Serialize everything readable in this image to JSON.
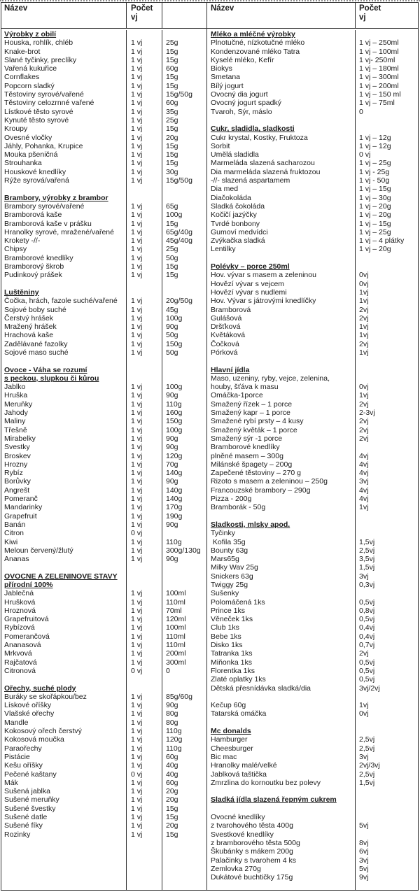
{
  "page": {
    "background": "#ffffff",
    "border_color": "#2e2e2e",
    "text_color": "#1b1b1b",
    "unit_abbreviation": "vj"
  },
  "left_table": {
    "headers": [
      "Název",
      "Počet\nvj",
      ""
    ],
    "sections": [
      {
        "title_lines": [
          "Výrobky z obilí"
        ],
        "rows": [
          [
            "Houska, rohlík, chléb",
            "1 vj",
            "25g"
          ],
          [
            "Knake-brot",
            "1 vj",
            "15g"
          ],
          [
            "Slané tyčinky, preclíky",
            "1 vj",
            "15g"
          ],
          [
            "Vařená kukuřice",
            "1 vj",
            "60g"
          ],
          [
            "Cornflakes",
            "1 vj",
            "15g"
          ],
          [
            "Popcorn sladký",
            "1 vj",
            "15g"
          ],
          [
            "Těstoviny syrové/vařené",
            "1 vj",
            "15g/50g"
          ],
          [
            "Těstoviny celozrnné vařené",
            "1 vj",
            "60g"
          ],
          [
            "Lístkové těsto syrové",
            "1 vj",
            "35g"
          ],
          [
            "Kynuté těsto syrové",
            "1 vj",
            "25g"
          ],
          [
            "Kroupy",
            "1 vj",
            "15g"
          ],
          [
            "Ovesné vločky",
            "1 vj",
            "20g"
          ],
          [
            "Jáhly, Pohanka, Krupice",
            "1 vj",
            "15g"
          ],
          [
            "Mouka pšeničná",
            "1 vj",
            "15g"
          ],
          [
            "Strouhanka",
            "1 vj",
            "15g"
          ],
          [
            "Houskové knedlíky",
            "1 vj",
            "30g"
          ],
          [
            "Rýže syrová/vařená",
            "1 vj",
            "15g/50g"
          ]
        ]
      },
      {
        "title_lines": [
          "Brambory, výrobky z brambor"
        ],
        "rows": [
          [
            "Brambory syrové/vařené",
            "1 vj",
            "65g"
          ],
          [
            "Bramborová kaše",
            "1 vj",
            "100g"
          ],
          [
            "Bramborová kaše v prášku",
            "1 vj",
            "15g"
          ],
          [
            "Hranolky syrové, mražené/vařené",
            "1 vj",
            "65g/40g"
          ],
          [
            "Krokety -//-",
            "1 vj",
            "45g/40g"
          ],
          [
            "Chipsy",
            "1 vj",
            "25g"
          ],
          [
            "Bramborové knedlíky",
            "1 vj",
            "50g"
          ],
          [
            "Bramborový škrob",
            "1 vj",
            "15g"
          ],
          [
            "Pudinkový prášek",
            "1 vj",
            "15g"
          ]
        ]
      },
      {
        "title_lines": [
          "Luštěniny"
        ],
        "rows": [
          [
            "Čočka, hrách, fazole suché/vařené",
            "1 vj",
            "20g/50g"
          ],
          [
            "Sojové boby suché",
            "1 vj",
            "45g"
          ],
          [
            "Čerstvý hrášek",
            "1 vj",
            "100g"
          ],
          [
            "Mražený hrášek",
            "1 vj",
            "90g"
          ],
          [
            "Hrachová kaše",
            "1 vj",
            "50g"
          ],
          [
            "Zadělávané fazolky",
            "1 vj",
            "150g"
          ],
          [
            "Sojové maso suché",
            "1 vj",
            "50g"
          ]
        ]
      },
      {
        "title_lines": [
          "Ovoce - Váha se rozumí",
          "s peckou, slupkou či kůrou"
        ],
        "rows": [
          [
            "Jablko",
            "1 vj",
            "100g"
          ],
          [
            "Hruška",
            "1 vj",
            "90g"
          ],
          [
            "Meruňky",
            "1 vj",
            "110g"
          ],
          [
            "Jahody",
            "1 vj",
            "160g"
          ],
          [
            "Maliny",
            "1 vj",
            "150g"
          ],
          [
            "Třešně",
            "1 vj",
            "100g"
          ],
          [
            "Mirabelky",
            "1 vj",
            "90g"
          ],
          [
            "Svestky",
            "1 vj",
            "90g"
          ],
          [
            "Broskev",
            "1 vj",
            "120g"
          ],
          [
            "Hrozny",
            "1 vj",
            "70g"
          ],
          [
            "Rybíz",
            "1 vj",
            "140g"
          ],
          [
            "Borůvky",
            "1 vj",
            "90g"
          ],
          [
            "Angrešt",
            "1 vj",
            "140g"
          ],
          [
            "Pomeranč",
            "1 vj",
            "140g"
          ],
          [
            "Mandarinky",
            "1 vj",
            "170g"
          ],
          [
            "Grapefruit",
            "1 vj",
            "190g"
          ],
          [
            "Banán",
            "1 vj",
            "90g"
          ],
          [
            "Citron",
            "0 vj",
            ""
          ],
          [
            "Kiwi",
            "1 vj",
            "110g"
          ],
          [
            "Meloun červený/žlutý",
            "1 vj",
            "300g/130g"
          ],
          [
            "Ananas",
            "1 vj",
            "90g"
          ]
        ]
      },
      {
        "title_lines": [
          "OVOCNE A ZELENINOVE STAVY",
          "přírodní 100%"
        ],
        "rows": [
          [
            "Jablečná",
            "1 vj",
            "100ml"
          ],
          [
            "Hrušková",
            "1 vj",
            "110ml"
          ],
          [
            "Hroznová",
            "1 vj",
            "70ml"
          ],
          [
            "Grapefruitová",
            "1 vj",
            "120ml"
          ],
          [
            "Rybízová",
            "1 vj",
            "100ml"
          ],
          [
            "Pomerančová",
            "1 vj",
            "110ml"
          ],
          [
            "Ananasová",
            "1 vj",
            "110ml"
          ],
          [
            "Mrkvová",
            "1 vj",
            "200ml"
          ],
          [
            "Rajčatová",
            "1 vj",
            "300ml"
          ],
          [
            "Citronová",
            "0 vj",
            "0"
          ]
        ]
      },
      {
        "title_lines": [
          "Ořechy, suché plody"
        ],
        "rows": [
          [
            "Buráky se skořápkou/bez",
            "1 vj",
            "85g/60g"
          ],
          [
            "Lískové oříšky",
            "1 vj",
            "90g"
          ],
          [
            "Vlašské ořechy",
            "1 vj",
            "80g"
          ],
          [
            "Mandle",
            "1 vj",
            "80g"
          ],
          [
            "Kokosový ořech čerstvý",
            "1 vj",
            "110g"
          ],
          [
            "Kokosová moučka",
            "1 vj",
            "120g"
          ],
          [
            "Paraořechy",
            "1 vj",
            "110g"
          ],
          [
            "Pistácie",
            "1 vj",
            "60g"
          ],
          [
            "Kešu oříšky",
            "1 vj",
            "40g"
          ],
          [
            "Pečené kaštany",
            "0 vj",
            "40g"
          ],
          [
            "Mák",
            "1 vj",
            "60g"
          ],
          [
            "Sušená jablka",
            "1 vj",
            "20g"
          ],
          [
            "Sušené meruňky",
            "1 vj",
            "20g"
          ],
          [
            "Sušené švestky",
            "1 vj",
            "15g"
          ],
          [
            "Sušené datle",
            "1 vj",
            "15g"
          ],
          [
            "Sušené fíky",
            "1 vj",
            "20g"
          ],
          [
            "Rozinky",
            "1 vj",
            "15g"
          ]
        ]
      }
    ]
  },
  "right_table": {
    "headers": [
      "Název",
      "Počet\nvj"
    ],
    "sections": [
      {
        "title_lines": [
          "Mléko a mléčné výrobky"
        ],
        "rows": [
          [
            "Plnotučné, nízkotučné mléko",
            "1 vj – 250ml"
          ],
          [
            "Kondenzované mléko Tatra",
            "1 vj – 100ml"
          ],
          [
            "Kyselé mléko, Kefír",
            "1 vj- 250ml"
          ],
          [
            "Biokys",
            "1 vj – 180ml"
          ],
          [
            "Smetana",
            "1 vj – 300ml"
          ],
          [
            "Bílý jogurt",
            "1 vj – 200ml"
          ],
          [
            "Ovocný dia jogurt",
            "1 vj – 150 ml"
          ],
          [
            "Ovocný jogurt spadký",
            "1 vj – 75ml"
          ],
          [
            "Tvaroh, Sýr, máslo",
            "0"
          ]
        ]
      },
      {
        "title_lines": [
          "Cukr, sladidla, sladkosti"
        ],
        "rows": [
          [
            "Cukr krystal, Kostky, Fruktoza",
            "1 vj – 12g"
          ],
          [
            "Sorbit",
            "1 vj – 12g"
          ],
          [
            "Umělá sladidla",
            "0 vj"
          ],
          [
            "Marmeláda slazená sacharozou",
            "1 vj – 25g"
          ],
          [
            "Dia marmeláda slazená fruktozou",
            "1 vj - 25g"
          ],
          [
            "-//- slazená aspartamem",
            "1 vj - 50g"
          ],
          [
            "Dia med",
            "1 vj – 15g"
          ],
          [
            "Diačokoláda",
            "1 vj – 30g"
          ],
          [
            "Sladká čokoláda",
            "1 vj – 20g"
          ],
          [
            "Kočičí jazýčky",
            "1 vj – 20g"
          ],
          [
            "Tvrdé bonbony",
            "1 vj – 15g"
          ],
          [
            "Gumoví medvídci",
            "1 vj – 25g"
          ],
          [
            "Zvýkačka sladká",
            "1 vj – 4 plátky"
          ],
          [
            "Lentilky",
            "1 vj – 20g"
          ]
        ]
      },
      {
        "title_lines": [
          "Polévky – porce 250ml"
        ],
        "rows": [
          [
            "Hov. vývar s masem a zeleninou",
            "0vj"
          ],
          [
            "Hovězí vývar s vejcem",
            "0vj"
          ],
          [
            "Hovězí vývar s nudlemi",
            "1vj"
          ],
          [
            "Hov. Vývar s játrovými knedlíčky",
            "1vj"
          ],
          [
            "Bramborová",
            "2vj"
          ],
          [
            "Gulášová",
            "2vj"
          ],
          [
            "Dršťková",
            "1vj"
          ],
          [
            "Květáková",
            "1vj"
          ],
          [
            "Čočková",
            "2vj"
          ],
          [
            "Pórková",
            "1vj"
          ]
        ]
      },
      {
        "title_lines": [
          "Hlavní jídla"
        ],
        "rows": [
          [
            "Maso, uzeniny, ryby, vejce, zelenina,",
            ""
          ],
          [
            "houby, šťáva k masu",
            "0vj"
          ],
          [
            "Omáčka-1porce",
            "1vj"
          ],
          [
            "Smažený řízek – 1 porce",
            "2vj"
          ],
          [
            "Smažený kapr – 1 porce",
            "2-3vj"
          ],
          [
            "Smažené rybí prsty – 4 kusy",
            "2vj"
          ],
          [
            "Smažený květák – 1 porce",
            "2vj"
          ],
          [
            "Smažený sýr -1 porce",
            "2vj"
          ],
          [
            "Bramborové knedlíky",
            ""
          ],
          [
            "plněné masem – 300g",
            "4vj"
          ],
          [
            "Milánské špagety – 200g",
            "4vj"
          ],
          [
            "Zapečené těstoviny – 270 g",
            "4vj"
          ],
          [
            "Rizoto s masem a zeleninou – 250g",
            "3vj"
          ],
          [
            "Francouzské brambory – 290g",
            "4vj"
          ],
          [
            "Pizza - 200g",
            "4vj"
          ],
          [
            "Bramborák - 50g",
            "1vj"
          ]
        ]
      },
      {
        "title_lines": [
          "Sladkosti, mlsky apod."
        ],
        "rows": [
          [
            "Tyčinky",
            ""
          ],
          [
            " Kofila 35g",
            "1,5vj"
          ],
          [
            "Bounty 63g",
            "2,5vj"
          ],
          [
            "Mars65g",
            "3,5vj"
          ],
          [
            "Milky Wav 25g",
            "1,5vj"
          ],
          [
            "Snickers 63g",
            "3vj"
          ],
          [
            "Twiggy 25g",
            "0,3vj"
          ],
          [
            "Sušenky",
            ""
          ],
          [
            "Polomáčená 1ks",
            "0,5vj"
          ],
          [
            "Prince 1ks",
            "0,8vj"
          ],
          [
            "Věneček 1ks",
            "0,5vj"
          ],
          [
            "Club 1ks",
            "0,4vj"
          ],
          [
            "Bebe 1ks",
            "0,4vj"
          ],
          [
            "Disko 1ks",
            "0,7vj"
          ],
          [
            "Tatranka 1ks",
            "2vj"
          ],
          [
            "Miňonka 1ks",
            "0,5vj"
          ],
          [
            "Florentka 1ks",
            "0,5vj"
          ],
          [
            "Zlaté oplatky 1ks",
            "0,5vj"
          ],
          [
            "Dětská přesnídávka sladká/dia",
            "3vj/2vj"
          ],
          [
            "",
            ""
          ],
          [
            "Kečup 60g",
            "1vj"
          ],
          [
            "Tatarská omáčka",
            "0vj"
          ]
        ]
      },
      {
        "title_lines": [
          "Mc donalds"
        ],
        "rows": [
          [
            "Hamburger",
            "2,5vj"
          ],
          [
            "Cheesburger",
            "2,5vj"
          ],
          [
            "Bic mac",
            "3vj"
          ],
          [
            "Hranolky malé/velké",
            "2vj/3vj"
          ],
          [
            "Jablková taštička",
            "2,5vj"
          ],
          [
            "Zmrzlina do kornoutku bez polevy",
            "1,5vj"
          ]
        ]
      },
      {
        "title_lines": [
          "Sladká jídla slazená řepným cukrem"
        ],
        "rows": [
          [
            "",
            ""
          ],
          [
            "Ovocné knedlíky",
            ""
          ],
          [
            "z tvarohového těsta 400g",
            "5vj"
          ],
          [
            "Svestkové knedlíky",
            ""
          ],
          [
            "z bramborového těsta 500g",
            "8vj"
          ],
          [
            "Škubánky s mákem 200g",
            "6vj"
          ],
          [
            "Palačinky s tvarohem 4 ks",
            "3vj"
          ],
          [
            "Zemlovka 270g",
            "5vj"
          ],
          [
            "Dukátové buchtičky 175g",
            "9vj"
          ]
        ]
      }
    ]
  }
}
